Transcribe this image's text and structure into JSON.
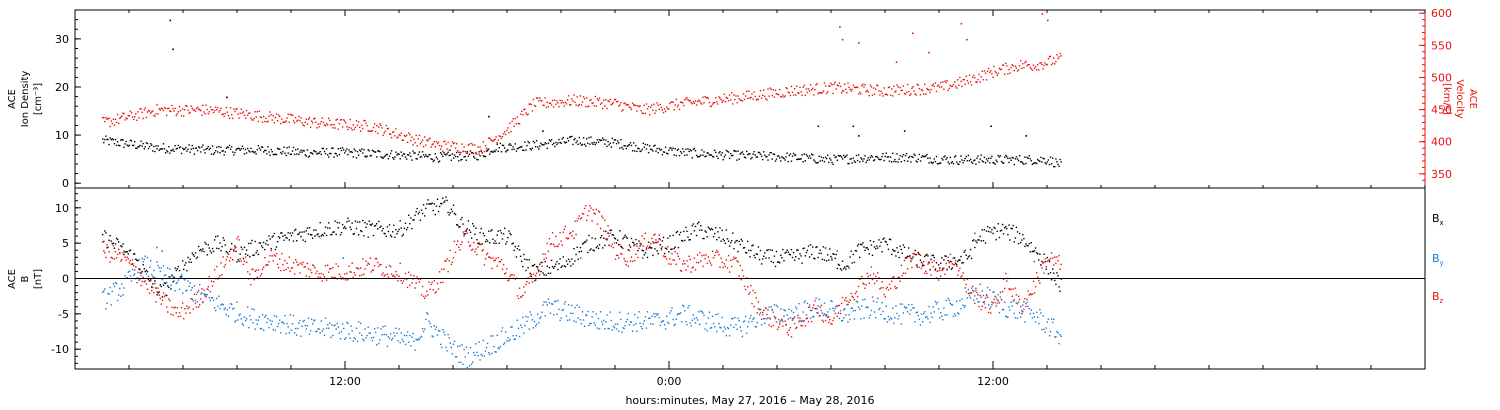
{
  "chart_data": [
    {
      "type": "scatter",
      "panel": "top",
      "ylabel_left": [
        "ACE",
        "Ion Density",
        "[cm⁻³]"
      ],
      "ylabel_right": [
        "ACE",
        "Velocity",
        "[km/s]"
      ],
      "ylim_left": [
        -1,
        36
      ],
      "ylim_right": [
        328,
        605
      ],
      "yticks_left": [
        0,
        10,
        20,
        30
      ],
      "yticks_right": [
        350,
        400,
        450,
        500,
        550,
        600
      ],
      "series": [
        {
          "axis": "left",
          "color": "#000000",
          "keypoints": [
            [
              3.0,
              9
            ],
            [
              5.0,
              7.5
            ],
            [
              7.0,
              7
            ],
            [
              9.0,
              7
            ],
            [
              10.5,
              6.5
            ],
            [
              12.0,
              6.5
            ],
            [
              14.0,
              6
            ],
            [
              15.5,
              5.5
            ],
            [
              17.0,
              6
            ],
            [
              17.5,
              7.5
            ],
            [
              19.0,
              8
            ],
            [
              20.5,
              9
            ],
            [
              22.0,
              8.5
            ],
            [
              23.0,
              7.5
            ],
            [
              24.5,
              6.5
            ],
            [
              26.0,
              6
            ],
            [
              28.5,
              5.5
            ],
            [
              30.0,
              5
            ],
            [
              31.5,
              5.5
            ],
            [
              33.0,
              5.5
            ],
            [
              34.5,
              5
            ],
            [
              36.0,
              5
            ],
            [
              37.0,
              5
            ],
            [
              38.0,
              5
            ],
            [
              38.5,
              4
            ]
          ],
          "outliers": [
            [
              5.5,
              34
            ],
            [
              5.6,
              28
            ],
            [
              7.6,
              18
            ],
            [
              17.3,
              14
            ],
            [
              19.3,
              11
            ],
            [
              30.8,
              12
            ],
            [
              29.5,
              12
            ],
            [
              31.0,
              10
            ],
            [
              35.9,
              12
            ],
            [
              37.2,
              10
            ],
            [
              32.7,
              11
            ]
          ]
        },
        {
          "axis": "right",
          "color": "#e8120c",
          "keypoints": [
            [
              3.0,
              430
            ],
            [
              5.0,
              450
            ],
            [
              7.0,
              450
            ],
            [
              9.0,
              440
            ],
            [
              11.0,
              430
            ],
            [
              13.0,
              425
            ],
            [
              14.5,
              405
            ],
            [
              15.5,
              395
            ],
            [
              17.0,
              390
            ],
            [
              18.0,
              420
            ],
            [
              19.0,
              460
            ],
            [
              20.5,
              465
            ],
            [
              22.0,
              460
            ],
            [
              23.0,
              450
            ],
            [
              24.5,
              460
            ],
            [
              25.5,
              465
            ],
            [
              27.0,
              472
            ],
            [
              28.5,
              480
            ],
            [
              30.0,
              485
            ],
            [
              32.0,
              480
            ],
            [
              34.0,
              485
            ],
            [
              35.0,
              495
            ],
            [
              36.0,
              510
            ],
            [
              37.0,
              520
            ],
            [
              37.5,
              520
            ],
            [
              38.5,
              530
            ]
          ],
          "outliers": [
            [
              30.3,
              580
            ],
            [
              30.4,
              560
            ],
            [
              31.0,
              555
            ],
            [
              33.0,
              570
            ],
            [
              34.8,
              585
            ],
            [
              37.8,
              600
            ],
            [
              38.0,
              590
            ],
            [
              35.0,
              560
            ],
            [
              32.4,
              525
            ],
            [
              33.6,
              540
            ]
          ]
        }
      ]
    },
    {
      "type": "scatter",
      "panel": "bottom",
      "ylabel_left": [
        "ACE",
        "B",
        "[nT]"
      ],
      "ylim": [
        -12.8,
        12.8
      ],
      "yticks": [
        -10,
        -5,
        0,
        5,
        10
      ],
      "zero_line": true,
      "legend": [
        {
          "name": "Bx",
          "base": "B",
          "sub": "x",
          "color": "#000000"
        },
        {
          "name": "By",
          "base": "B",
          "sub": "y",
          "color": "#1a7ad6"
        },
        {
          "name": "Bz",
          "base": "B",
          "sub": "z",
          "color": "#e8120c"
        }
      ],
      "series": [
        {
          "name": "Bx",
          "color": "#000000",
          "keypoints": [
            [
              3.0,
              6
            ],
            [
              3.8,
              4
            ],
            [
              4.3,
              2.5
            ],
            [
              4.7,
              0
            ],
            [
              5.2,
              -2
            ],
            [
              5.8,
              1
            ],
            [
              6.5,
              4
            ],
            [
              7.3,
              5
            ],
            [
              8.0,
              3.5
            ],
            [
              9.0,
              5
            ],
            [
              10.0,
              6
            ],
            [
              11.0,
              7
            ],
            [
              12.0,
              7.5
            ],
            [
              13.0,
              7
            ],
            [
              14.0,
              7
            ],
            [
              15.0,
              10
            ],
            [
              15.8,
              10.5
            ],
            [
              16.2,
              8
            ],
            [
              17.0,
              6
            ],
            [
              18.0,
              6
            ],
            [
              18.5,
              3
            ],
            [
              19.0,
              1
            ],
            [
              20.0,
              2
            ],
            [
              21.0,
              5
            ],
            [
              22.0,
              6
            ],
            [
              23.0,
              4
            ],
            [
              24.0,
              5
            ],
            [
              25.0,
              7
            ],
            [
              26.0,
              6
            ],
            [
              26.5,
              5
            ],
            [
              27.5,
              3
            ],
            [
              28.5,
              3
            ],
            [
              29.5,
              4
            ],
            [
              30.5,
              2
            ],
            [
              31.0,
              4
            ],
            [
              32.0,
              5
            ],
            [
              33.0,
              3
            ],
            [
              34.0,
              2
            ],
            [
              35.0,
              3
            ],
            [
              35.5,
              6
            ],
            [
              36.3,
              7
            ],
            [
              37.0,
              6
            ],
            [
              37.8,
              3
            ],
            [
              38.5,
              -1
            ]
          ],
          "jitter": 1.2
        },
        {
          "name": "By",
          "color": "#1a7ad6",
          "keypoints": [
            [
              3.0,
              -3
            ],
            [
              3.8,
              -1
            ],
            [
              4.5,
              2
            ],
            [
              5.5,
              0
            ],
            [
              6.5,
              -2
            ],
            [
              7.5,
              -4
            ],
            [
              8.5,
              -5.5
            ],
            [
              9.5,
              -6
            ],
            [
              10.5,
              -7
            ],
            [
              11.5,
              -7
            ],
            [
              12.5,
              -7.5
            ],
            [
              13.5,
              -8
            ],
            [
              14.5,
              -9
            ],
            [
              15.0,
              -6
            ],
            [
              16.0,
              -10
            ],
            [
              16.5,
              -11
            ],
            [
              17.5,
              -9
            ],
            [
              18.5,
              -7
            ],
            [
              19.5,
              -4
            ],
            [
              20.5,
              -5
            ],
            [
              21.5,
              -6
            ],
            [
              22.5,
              -6
            ],
            [
              23.5,
              -6
            ],
            [
              24.5,
              -5
            ],
            [
              25.5,
              -6
            ],
            [
              26.5,
              -7
            ],
            [
              27.5,
              -5
            ],
            [
              28.5,
              -5
            ],
            [
              29.5,
              -4
            ],
            [
              30.5,
              -5
            ],
            [
              31.5,
              -4
            ],
            [
              32.5,
              -5
            ],
            [
              33.5,
              -5
            ],
            [
              34.5,
              -4
            ],
            [
              35.5,
              -2
            ],
            [
              36.5,
              -4
            ],
            [
              37.5,
              -5
            ],
            [
              38.5,
              -8
            ]
          ],
          "outliers": [
            [
              5.0,
              4.5
            ],
            [
              5.2,
              4
            ],
            [
              11.9,
              3
            ],
            [
              20.7,
              3
            ],
            [
              23.0,
              3
            ],
            [
              30.0,
              3
            ],
            [
              30.2,
              4
            ],
            [
              34.5,
              3
            ],
            [
              35.3,
              6.5
            ],
            [
              37.5,
              2.5
            ]
          ],
          "jitter": 1.5
        },
        {
          "name": "Bz",
          "color": "#e8120c",
          "keypoints": [
            [
              3.0,
              4
            ],
            [
              3.8,
              3
            ],
            [
              4.5,
              0
            ],
            [
              5.2,
              -3
            ],
            [
              5.8,
              -5
            ],
            [
              6.5,
              -3
            ],
            [
              7.3,
              1
            ],
            [
              8.0,
              5
            ],
            [
              8.5,
              0
            ],
            [
              9.2,
              3
            ],
            [
              10.0,
              2
            ],
            [
              11.0,
              1
            ],
            [
              12.0,
              1
            ],
            [
              13.0,
              2
            ],
            [
              14.0,
              1
            ],
            [
              15.0,
              -2
            ],
            [
              15.5,
              0
            ],
            [
              16.0,
              4
            ],
            [
              16.5,
              6
            ],
            [
              17.2,
              3
            ],
            [
              17.8,
              2
            ],
            [
              18.5,
              -2
            ],
            [
              19.0,
              0
            ],
            [
              19.5,
              5
            ],
            [
              20.5,
              7
            ],
            [
              21.0,
              10
            ],
            [
              21.5,
              8
            ],
            [
              22.0,
              4
            ],
            [
              22.5,
              3
            ],
            [
              23.0,
              5
            ],
            [
              23.5,
              6
            ],
            [
              24.0,
              3
            ],
            [
              24.5,
              2
            ],
            [
              25.5,
              3
            ],
            [
              26.5,
              2
            ],
            [
              27.0,
              -2
            ],
            [
              27.5,
              -5
            ],
            [
              28.5,
              -7
            ],
            [
              29.5,
              -4
            ],
            [
              30.0,
              -6
            ],
            [
              30.5,
              -3
            ],
            [
              31.0,
              -1
            ],
            [
              31.5,
              1
            ],
            [
              32.0,
              -2
            ],
            [
              33.0,
              3
            ],
            [
              33.5,
              2
            ],
            [
              34.0,
              1
            ],
            [
              34.5,
              3
            ],
            [
              35.0,
              -1
            ],
            [
              35.5,
              -3
            ],
            [
              36.0,
              -4
            ],
            [
              36.5,
              0
            ],
            [
              37.0,
              -4
            ],
            [
              37.5,
              -1
            ],
            [
              38.0,
              3
            ],
            [
              38.5,
              2
            ]
          ],
          "jitter": 1.3
        }
      ]
    }
  ],
  "x_axis": {
    "label": "hours:minutes, May 27, 2016 – May 28, 2016",
    "xlim_hours": [
      2.0,
      52.0
    ],
    "major_ticks": [
      {
        "hour": 12,
        "label": "12:00"
      },
      {
        "hour": 24,
        "label": "0:00"
      },
      {
        "hour": 36,
        "label": "12:00"
      }
    ],
    "minor_tick_step_hours": 2
  }
}
